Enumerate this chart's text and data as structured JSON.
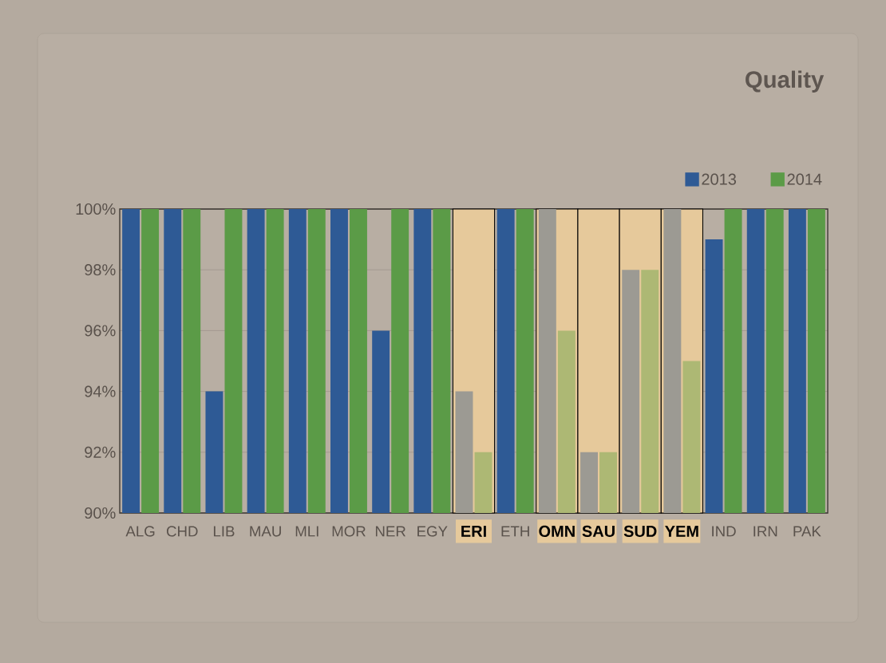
{
  "chart_data": {
    "type": "bar",
    "title": "Quality",
    "categories": [
      "ALG",
      "CHD",
      "LIB",
      "MAU",
      "MLI",
      "MOR",
      "NER",
      "EGY",
      "ERI",
      "ETH",
      "OMN",
      "SAU",
      "SUD",
      "YEM",
      "IND",
      "IRN",
      "PAK"
    ],
    "series": [
      {
        "name": "2013",
        "color": "#2e5a95",
        "values": [
          100,
          100,
          94,
          100,
          100,
          100,
          96,
          100,
          94,
          100,
          100,
          92,
          98,
          100,
          99,
          100,
          100
        ],
        "colors": [
          "#2e5a95",
          "#2e5a95",
          "#2e5a95",
          "#2e5a95",
          "#2e5a95",
          "#2e5a95",
          "#2e5a95",
          "#2e5a95",
          "#9c9a93",
          "#2e5a95",
          "#9c9a93",
          "#9c9a93",
          "#9c9a93",
          "#9c9a93",
          "#2e5a95",
          "#2e5a95",
          "#2e5a95"
        ]
      },
      {
        "name": "2014",
        "color": "#5b9b47",
        "values": [
          100,
          100,
          100,
          100,
          100,
          100,
          100,
          100,
          92,
          100,
          96,
          92,
          98,
          95,
          100,
          100,
          100
        ],
        "colors": [
          "#5b9b47",
          "#5b9b47",
          "#5b9b47",
          "#5b9b47",
          "#5b9b47",
          "#5b9b47",
          "#5b9b47",
          "#5b9b47",
          "#adb874",
          "#5b9b47",
          "#adb874",
          "#adb874",
          "#adb874",
          "#adb874",
          "#5b9b47",
          "#5b9b47",
          "#5b9b47"
        ]
      }
    ],
    "ylim": [
      90,
      100
    ],
    "yticks": [
      {
        "value": 90,
        "label": "90%"
      },
      {
        "value": 92,
        "label": "92%"
      },
      {
        "value": 94,
        "label": "94%"
      },
      {
        "value": 96,
        "label": "96%"
      },
      {
        "value": 98,
        "label": "98%"
      },
      {
        "value": 100,
        "label": "100%"
      }
    ],
    "bands": [
      {
        "axis": "x",
        "from": "ERI",
        "to": "ERI",
        "color": "#e6c99b"
      },
      {
        "axis": "x",
        "from": "OMN",
        "to": "OMN",
        "color": "#e6c99b"
      },
      {
        "axis": "x",
        "from": "SAU",
        "to": "SAU",
        "color": "#e6c99b"
      },
      {
        "axis": "x",
        "from": "SUD",
        "to": "SUD",
        "color": "#e6c99b"
      },
      {
        "axis": "x",
        "from": "YEM",
        "to": "YEM",
        "color": "#e6c99b"
      }
    ],
    "grid": "y",
    "legend": "top right"
  }
}
